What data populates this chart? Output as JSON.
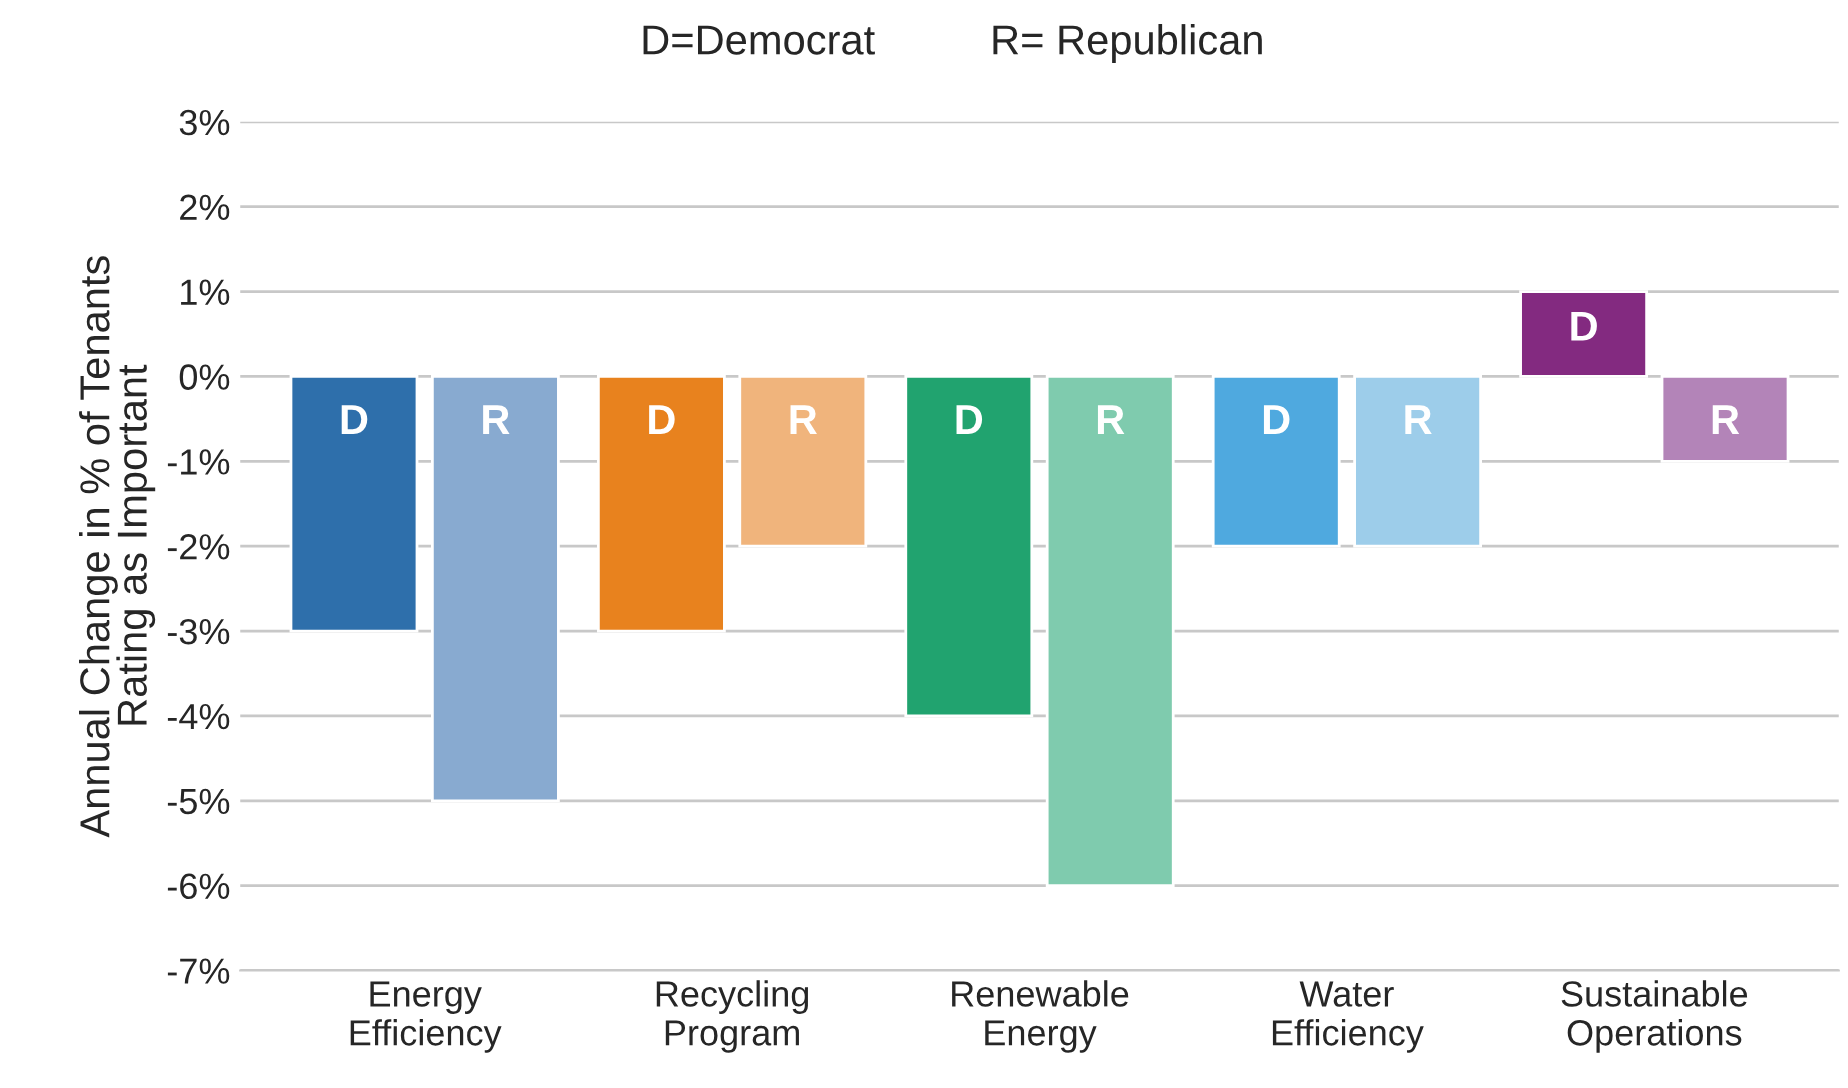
{
  "chart_data": {
    "type": "bar",
    "categories": [
      "Energy\nEfficiency",
      "Recycling\nProgram",
      "Renewable\nEnergy",
      "Water\nEfficiency",
      "Sustainable\nOperations"
    ],
    "ylabel": "Annual Change in % of Tenants\nRating as Important",
    "annotations": [
      "D=Democrat",
      "R= Republican"
    ],
    "series": [
      {
        "name": "D",
        "values": [
          -3,
          -3,
          -4,
          -2,
          1
        ],
        "colors": [
          "#2e6fab",
          "#e8821e",
          "#21a36f",
          "#4fa9df",
          "#832a80"
        ]
      },
      {
        "name": "R",
        "values": [
          -5,
          -2,
          -6,
          -2,
          -1
        ],
        "colors": [
          "#88aad0",
          "#f0b47c",
          "#7fcbae",
          "#9dcdea",
          "#b384b8"
        ]
      }
    ],
    "ylim": [
      -7,
      3
    ],
    "yticks": [
      {
        "value": 3,
        "label": "3%"
      },
      {
        "value": 2,
        "label": "2%"
      },
      {
        "value": 1,
        "label": "1%"
      },
      {
        "value": 0,
        "label": "0%"
      },
      {
        "value": -1,
        "label": "-1%"
      },
      {
        "value": -2,
        "label": "-2%"
      },
      {
        "value": -3,
        "label": "-3%"
      },
      {
        "value": -4,
        "label": "-4%"
      },
      {
        "value": -5,
        "label": "-5%"
      },
      {
        "value": -6,
        "label": "-6%"
      },
      {
        "value": -7,
        "label": "-7%"
      }
    ],
    "grid": "y",
    "legend": false
  }
}
